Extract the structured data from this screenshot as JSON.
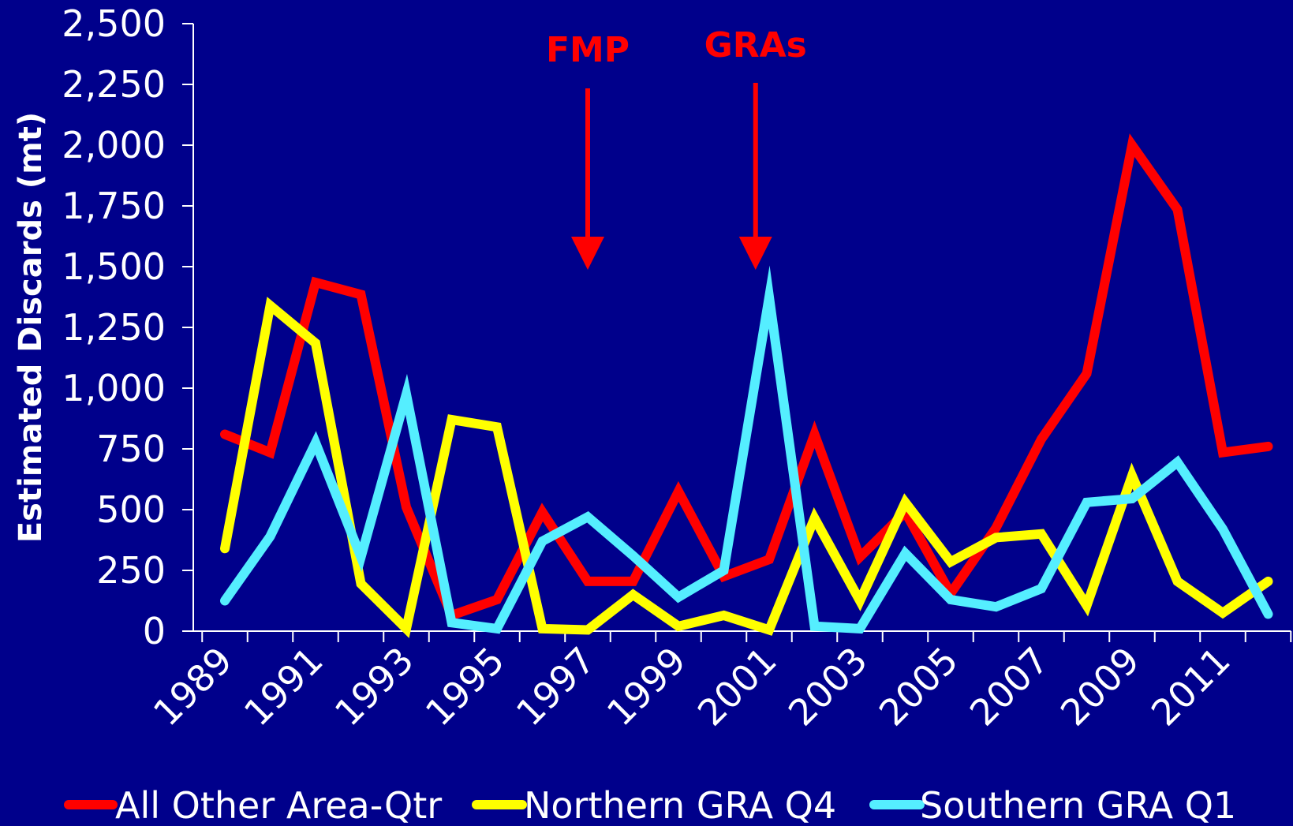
{
  "chart_data": {
    "type": "line",
    "title": "",
    "xlabel": "",
    "ylabel": "Estimated Discards (mt)",
    "ylim": [
      0,
      2500
    ],
    "yticks": [
      0,
      250,
      500,
      750,
      1000,
      1250,
      1500,
      1750,
      2000,
      2250,
      2500
    ],
    "ytick_labels": [
      "0",
      "250",
      "500",
      "750",
      "1,000",
      "1,250",
      "1,500",
      "1,750",
      "2,000",
      "2,250",
      "2,500"
    ],
    "x": [
      1989,
      1990,
      1991,
      1992,
      1993,
      1994,
      1995,
      1996,
      1997,
      1998,
      1999,
      2000,
      2001,
      2002,
      2003,
      2004,
      2005,
      2006,
      2007,
      2008,
      2009,
      2010,
      2011,
      2012
    ],
    "xtick_labels": [
      "1989",
      "1991",
      "1993",
      "1995",
      "1997",
      "1999",
      "2001",
      "2003",
      "2005",
      "2007",
      "2009",
      "2011"
    ],
    "grid": false,
    "legend_position": "bottom",
    "series": [
      {
        "name": "All Other Area-Qtr",
        "color": "#FF0000",
        "values": [
          810,
          735,
          1435,
          1385,
          510,
          65,
          130,
          490,
          205,
          205,
          575,
          225,
          295,
          810,
          305,
          490,
          155,
          425,
          790,
          1060,
          2000,
          1735,
          735,
          760
        ]
      },
      {
        "name": "Northern GRA Q4",
        "color": "#FFFF00",
        "values": [
          340,
          1340,
          1185,
          195,
          10,
          870,
          840,
          10,
          5,
          150,
          20,
          65,
          5,
          465,
          125,
          530,
          285,
          385,
          400,
          105,
          640,
          205,
          75,
          205
        ]
      },
      {
        "name": "Southern GRA Q1",
        "color": "#55EEFF",
        "values": [
          125,
          390,
          775,
          305,
          975,
          35,
          10,
          370,
          470,
          310,
          140,
          250,
          1375,
          20,
          10,
          320,
          130,
          100,
          175,
          530,
          545,
          695,
          420,
          70
        ]
      }
    ],
    "annotations": [
      {
        "text": "FMP",
        "x": 1997,
        "color": "#FF0000"
      },
      {
        "text": "GRAs",
        "x": 2000.7,
        "color": "#FF0000"
      }
    ]
  }
}
